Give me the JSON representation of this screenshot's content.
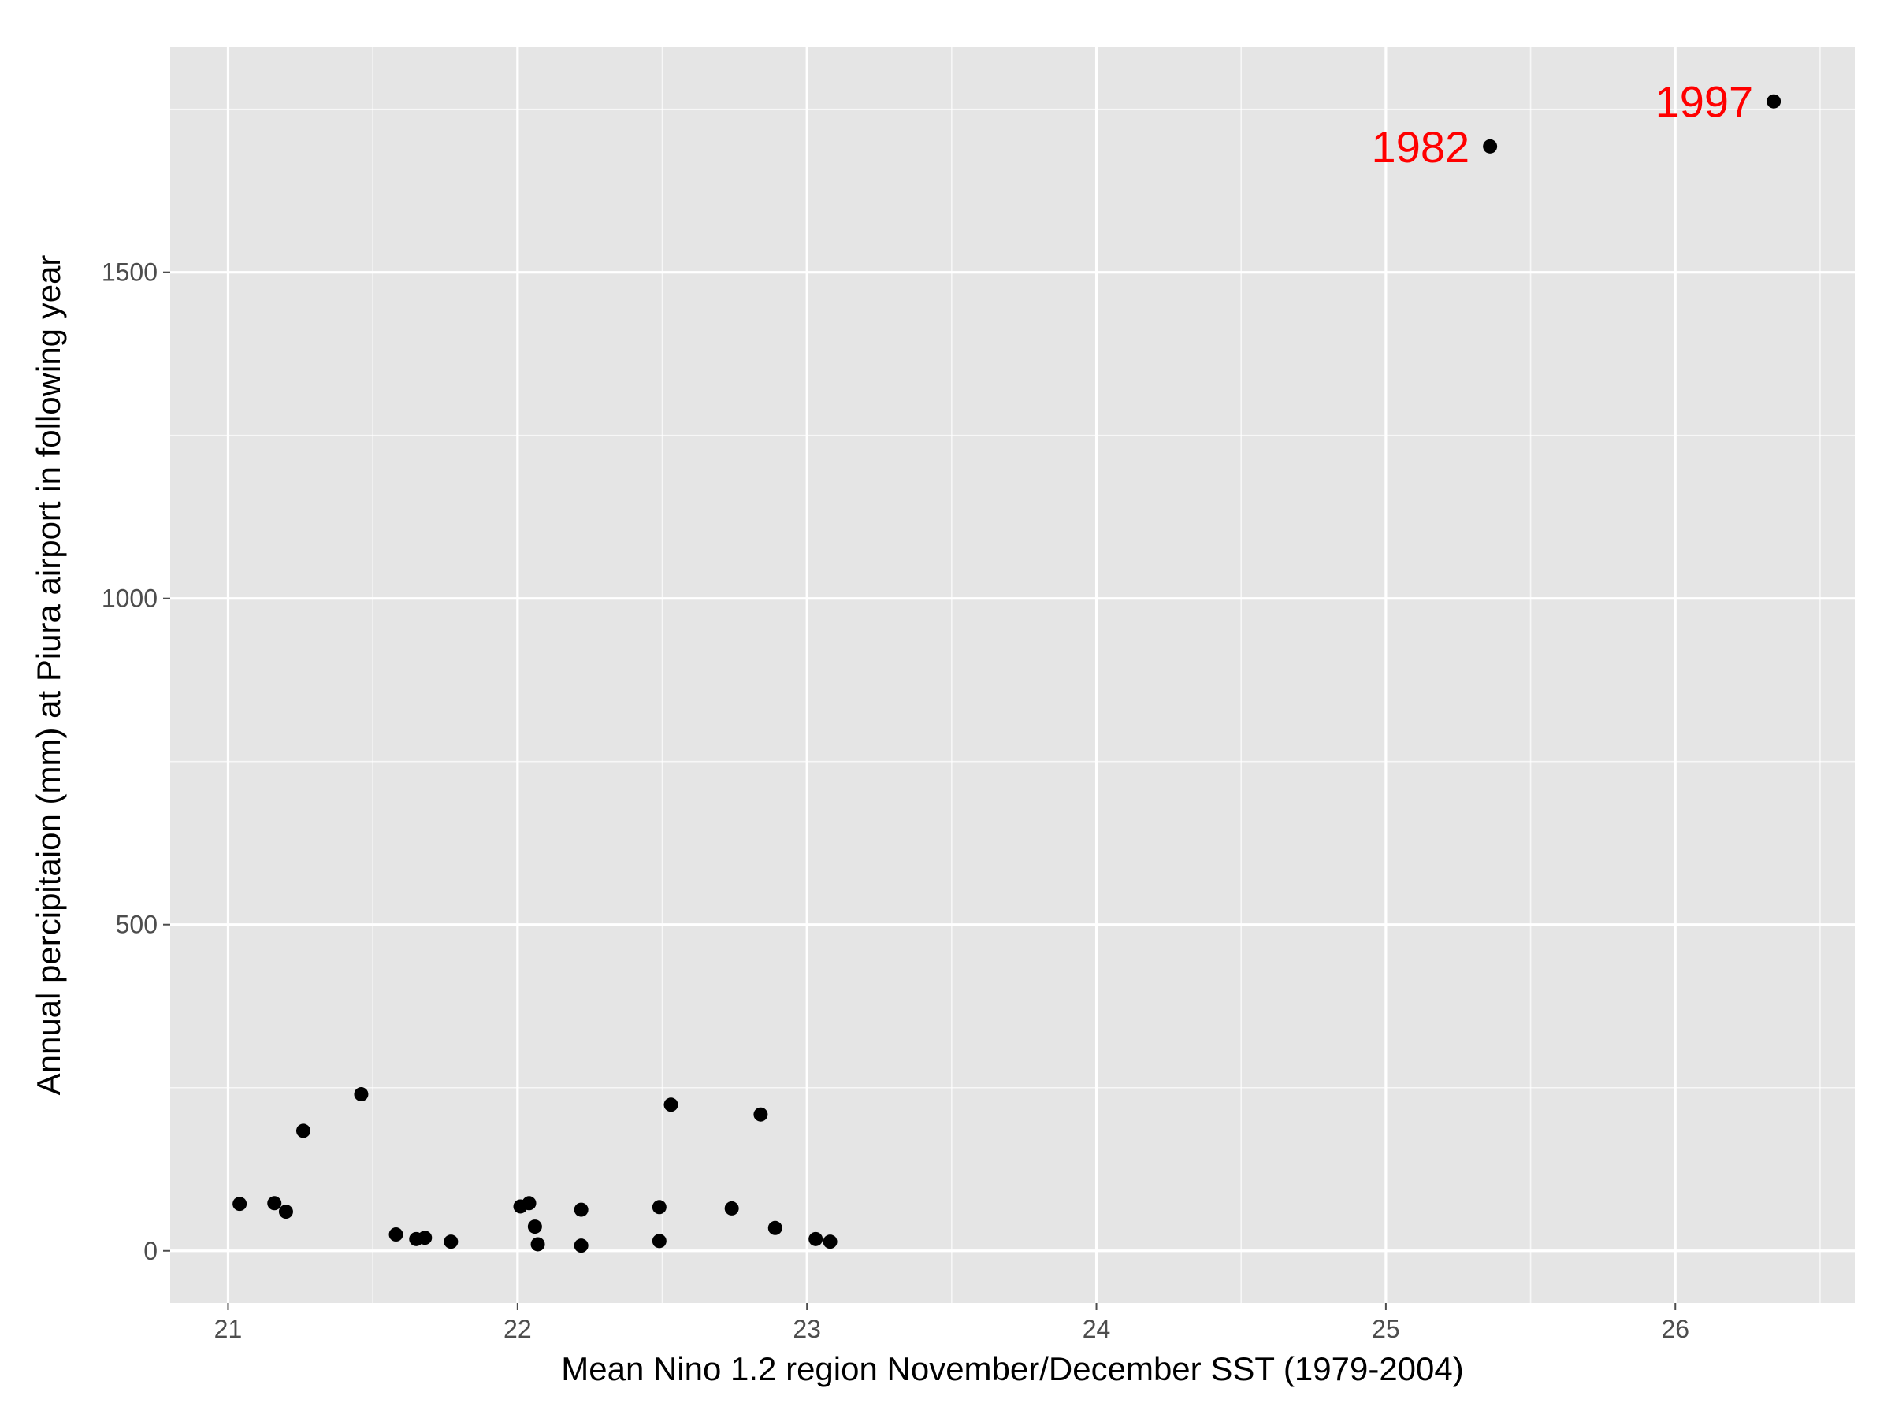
{
  "chart_data": {
    "type": "scatter",
    "title": "",
    "xlabel": "Mean Nino 1.2 region November/December SST (1979-2004)",
    "ylabel": "Annual percipitaion (mm) at Piura airport in following year",
    "xlim": [
      20.8,
      26.62
    ],
    "ylim": [
      -80,
      1845
    ],
    "xticks": [
      21,
      22,
      23,
      24,
      25,
      26
    ],
    "xtick_labels": [
      "21",
      "22",
      "23",
      "24",
      "25",
      "26"
    ],
    "yticks": [
      0,
      500,
      1000,
      1500
    ],
    "ytick_labels": [
      "0",
      "500",
      "1000",
      "1500"
    ],
    "grid": true,
    "background_color": "#e5e5e5",
    "grid_color": "#ffffff",
    "point_color": "#000000",
    "label_color": "#ff0000",
    "points": [
      {
        "x": 21.04,
        "y": 72
      },
      {
        "x": 21.16,
        "y": 73
      },
      {
        "x": 21.2,
        "y": 60
      },
      {
        "x": 21.26,
        "y": 184
      },
      {
        "x": 21.46,
        "y": 240
      },
      {
        "x": 21.58,
        "y": 25
      },
      {
        "x": 21.65,
        "y": 18
      },
      {
        "x": 21.68,
        "y": 20
      },
      {
        "x": 21.77,
        "y": 14
      },
      {
        "x": 22.01,
        "y": 68
      },
      {
        "x": 22.04,
        "y": 73
      },
      {
        "x": 22.06,
        "y": 37
      },
      {
        "x": 22.07,
        "y": 10
      },
      {
        "x": 22.22,
        "y": 63
      },
      {
        "x": 22.22,
        "y": 8
      },
      {
        "x": 22.49,
        "y": 67
      },
      {
        "x": 22.49,
        "y": 15
      },
      {
        "x": 22.53,
        "y": 224
      },
      {
        "x": 22.74,
        "y": 65
      },
      {
        "x": 22.84,
        "y": 209
      },
      {
        "x": 22.89,
        "y": 35
      },
      {
        "x": 23.03,
        "y": 18
      },
      {
        "x": 23.08,
        "y": 14
      },
      {
        "x": 25.36,
        "y": 1693
      },
      {
        "x": 26.34,
        "y": 1762
      }
    ],
    "annotations": [
      {
        "text": "1982",
        "x": 25.36,
        "y": 1693
      },
      {
        "text": "1997",
        "x": 26.34,
        "y": 1762
      }
    ]
  }
}
